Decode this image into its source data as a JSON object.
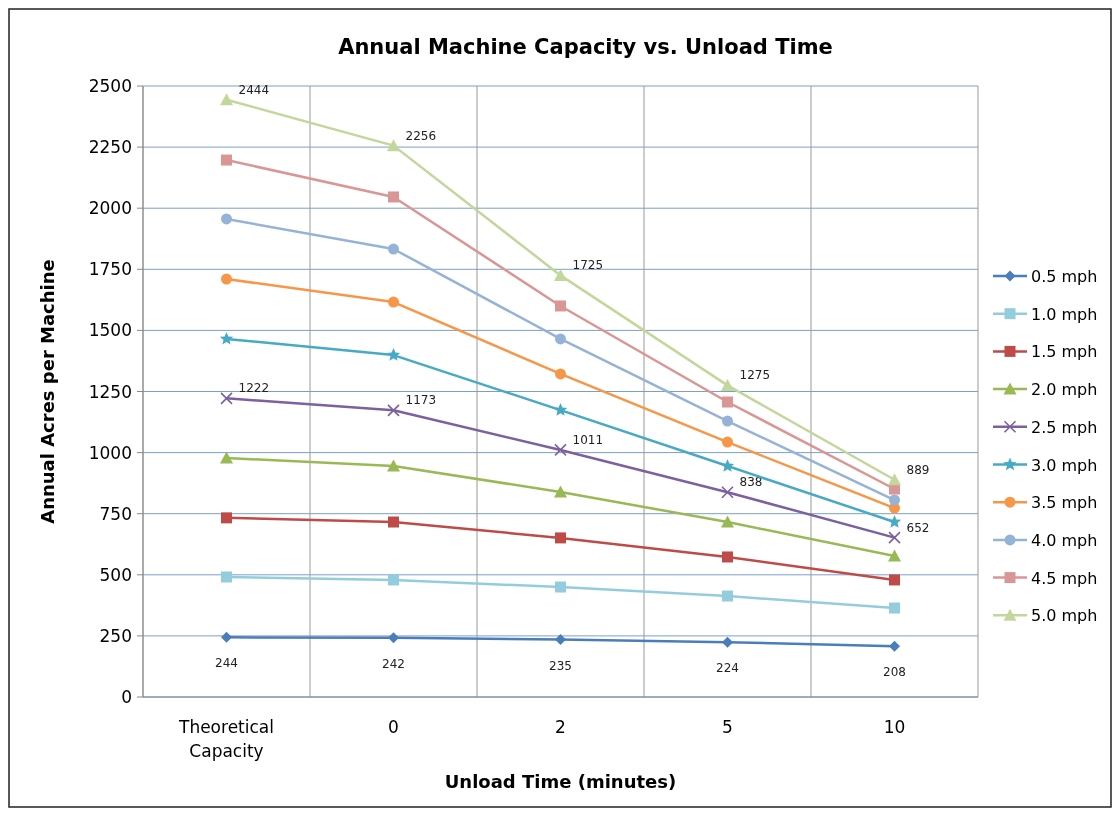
{
  "chart_data": {
    "type": "line",
    "title": "Annual Machine Capacity vs. Unload Time",
    "xlabel": "Unload Time (minutes)",
    "ylabel": "Annual Acres per Machine",
    "categories": [
      "Theoretical Capacity",
      "0",
      "2",
      "5",
      "10"
    ],
    "ylim": [
      0,
      2500
    ],
    "yticks": [
      0,
      250,
      500,
      750,
      1000,
      1250,
      1500,
      1750,
      2000,
      2250,
      2500
    ],
    "grid": true,
    "legend": "right",
    "series": [
      {
        "name": "0.5 mph",
        "color": "#4a7ebb",
        "marker": "diamond",
        "values": [
          244,
          242,
          235,
          224,
          208
        ],
        "value_labels": [
          "244",
          "242",
          "235",
          "224",
          "208"
        ]
      },
      {
        "name": "1.0 mph",
        "color": "#93cddd",
        "marker": "square",
        "values": [
          491,
          479,
          450,
          413,
          364
        ]
      },
      {
        "name": "1.5 mph",
        "color": "#be4b48",
        "marker": "square",
        "values": [
          733,
          716,
          651,
          573,
          479
        ]
      },
      {
        "name": "2.0 mph",
        "color": "#98b954",
        "marker": "triangle",
        "values": [
          978,
          945,
          839,
          716,
          577
        ]
      },
      {
        "name": "2.5 mph",
        "color": "#7d60a0",
        "marker": "cross",
        "values": [
          1222,
          1173,
          1011,
          838,
          652
        ],
        "value_labels": [
          "1222",
          "1173",
          "1011",
          "838",
          "652"
        ]
      },
      {
        "name": "3.0 mph",
        "color": "#46aac5",
        "marker": "star",
        "values": [
          1465,
          1399,
          1174,
          945,
          716
        ]
      },
      {
        "name": "3.5 mph",
        "color": "#f79646",
        "marker": "circle",
        "values": [
          1710,
          1616,
          1322,
          1043,
          773
        ]
      },
      {
        "name": "4.0 mph",
        "color": "#95b3d7",
        "marker": "circle",
        "values": [
          1956,
          1833,
          1465,
          1129,
          806
        ]
      },
      {
        "name": "4.5 mph",
        "color": "#d99694",
        "marker": "square",
        "values": [
          2197,
          2046,
          1600,
          1207,
          851
        ]
      },
      {
        "name": "5.0 mph",
        "color": "#c3d69b",
        "marker": "triangle",
        "values": [
          2444,
          2256,
          1725,
          1275,
          889
        ],
        "value_labels": [
          "2444",
          "2256",
          "1725",
          "1275",
          "889"
        ]
      }
    ]
  }
}
